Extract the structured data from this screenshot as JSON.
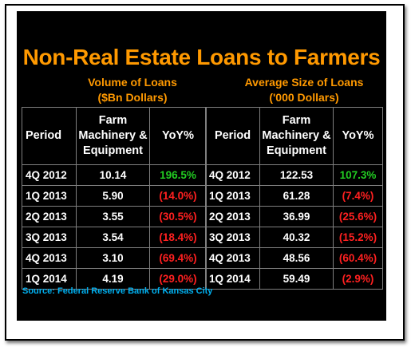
{
  "title": "Non-Real Estate Loans to Farmers",
  "left_table": {
    "subtitle_line1": "Volume of Loans",
    "subtitle_line2": "($Bn Dollars)",
    "headers": {
      "period": "Period",
      "value_line1": "Farm",
      "value_line2": "Machinery &",
      "value_line3": "Equipment",
      "yoy": "YoY%"
    },
    "rows": [
      {
        "period": "4Q 2012",
        "value": "10.14",
        "yoy": "196.5%"
      },
      {
        "period": "1Q 2013",
        "value": "5.90",
        "yoy": "(14.0%)"
      },
      {
        "period": "2Q 2013",
        "value": "3.55",
        "yoy": "(30.5%)"
      },
      {
        "period": "3Q 2013",
        "value": "3.54",
        "yoy": "(18.4%)"
      },
      {
        "period": "4Q 2013",
        "value": "3.10",
        "yoy": "(69.4%)"
      },
      {
        "period": "1Q 2014",
        "value": "4.19",
        "yoy": "(29.0%)"
      }
    ]
  },
  "right_table": {
    "subtitle_line1": "Average Size of Loans",
    "subtitle_line2": "('000 Dollars)",
    "headers": {
      "period": "Period",
      "value_line1": "Farm",
      "value_line2": "Machinery &",
      "value_line3": "Equipment",
      "yoy": "YoY%"
    },
    "rows": [
      {
        "period": "4Q 2012",
        "value": "122.53",
        "yoy": "107.3%"
      },
      {
        "period": "1Q 2013",
        "value": "61.28",
        "yoy": "(7.4%)"
      },
      {
        "period": "2Q 2013",
        "value": "36.99",
        "yoy": "(25.6%)"
      },
      {
        "period": "3Q 2013",
        "value": "40.32",
        "yoy": "(15.2%)"
      },
      {
        "period": "4Q 2013",
        "value": "48.56",
        "yoy": "(60.4%)"
      },
      {
        "period": "1Q 2014",
        "value": "59.49",
        "yoy": "(2.9%)"
      }
    ]
  },
  "source": "Source: Federal Reserve Bank of Kansas City",
  "colors": {
    "title": "#ff9900",
    "positive": "#22cc22",
    "negative": "#ff2020",
    "source": "#00b0f0",
    "background": "#000000"
  }
}
